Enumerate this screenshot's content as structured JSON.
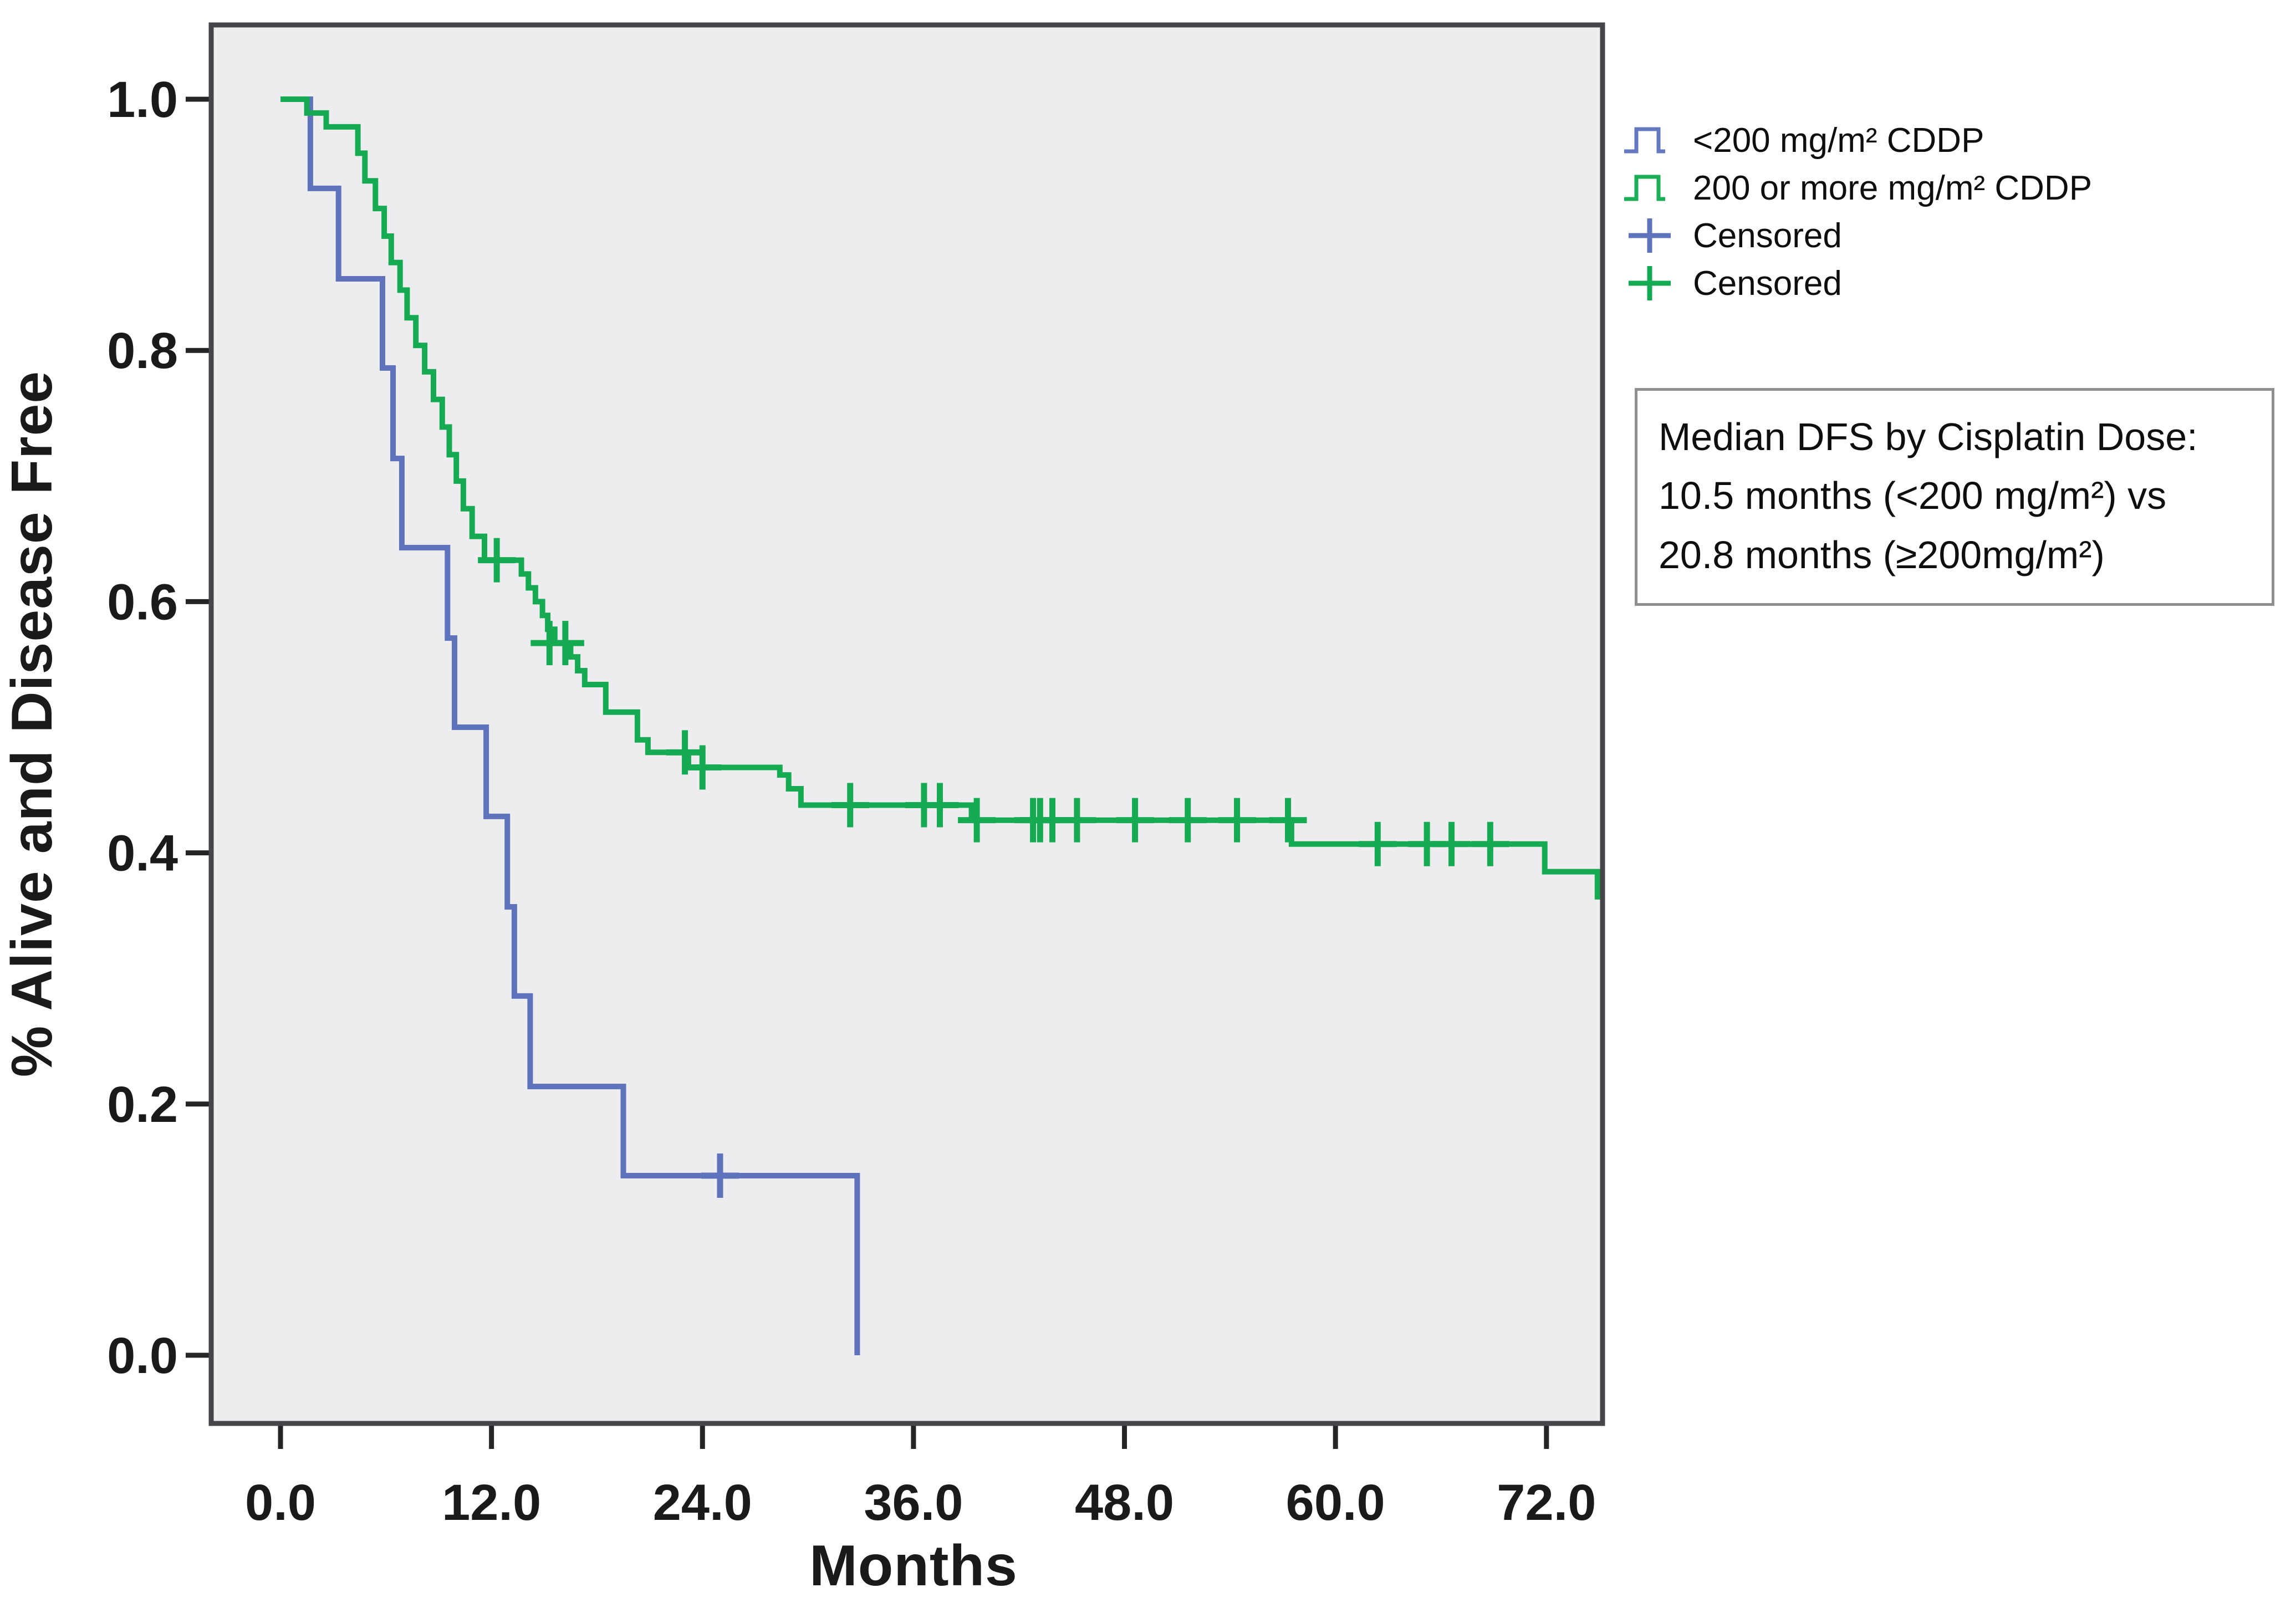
{
  "legend": {
    "items": [
      {
        "label": "<200 mg/m² CDDP",
        "marker": "step",
        "color": "#6479c1"
      },
      {
        "label": "200 or more mg/m² CDDP",
        "marker": "step",
        "color": "#1aaf56"
      },
      {
        "label": "Censored",
        "marker": "plus",
        "color": "#5e73bb"
      },
      {
        "label": "Censored",
        "marker": "plus",
        "color": "#16ab53"
      }
    ]
  },
  "annotation": {
    "lines": [
      "Median DFS by Cisplatin Dose:",
      "10.5 months (<200 mg/m²) vs",
      "20.8 months (≥200mg/m²)"
    ]
  },
  "chart_data": {
    "type": "line",
    "subtype": "kaplan-meier-step-survival",
    "title": "",
    "xlabel": "Months",
    "ylabel": "% Alive and Disease Free",
    "xlim": [
      0,
      75.3
    ],
    "ylim": [
      0.0,
      1.0
    ],
    "grid": false,
    "legend_position": "top-right-outside",
    "plot_bg_color": "#ededef",
    "frame_color": "#46464a",
    "x_ticks": [
      {
        "label": "0.0",
        "value": 0
      },
      {
        "label": "12.0",
        "value": 12
      },
      {
        "label": "24.0",
        "value": 24
      },
      {
        "label": "36.0",
        "value": 36
      },
      {
        "label": "48.0",
        "value": 48
      },
      {
        "label": "60.0",
        "value": 60
      },
      {
        "label": "72.0",
        "value": 72
      }
    ],
    "y_ticks": [
      {
        "label": "0.0",
        "value": 0.0
      },
      {
        "label": "0.2",
        "value": 0.2
      },
      {
        "label": "0.4",
        "value": 0.4
      },
      {
        "label": "0.6",
        "value": 0.6
      },
      {
        "label": "0.8",
        "value": 0.8
      },
      {
        "label": "1.0",
        "value": 1.0
      }
    ],
    "series": [
      {
        "name": "<200 mg/m² CDDP",
        "color": "#5e73bb",
        "median_months": 10.5,
        "points": [
          [
            0,
            1.0
          ],
          [
            1.7,
            0.929
          ],
          [
            3.3,
            0.857
          ],
          [
            5.8,
            0.786
          ],
          [
            6.4,
            0.714
          ],
          [
            6.9,
            0.643
          ],
          [
            9.5,
            0.571
          ],
          [
            9.9,
            0.5
          ],
          [
            11.7,
            0.429
          ],
          [
            12.9,
            0.357
          ],
          [
            13.3,
            0.286
          ],
          [
            14.2,
            0.214
          ],
          [
            19.5,
            0.143
          ],
          [
            32.8,
            0.0
          ]
        ],
        "end_t": 32.8,
        "censors": [
          [
            25.0,
            0.143
          ]
        ]
      },
      {
        "name": "200 or more mg/m² CDDP",
        "color": "#16ab53",
        "median_months": 20.8,
        "points": [
          [
            0,
            1.0
          ],
          [
            1.5,
            0.989
          ],
          [
            2.6,
            0.978
          ],
          [
            4.4,
            0.957
          ],
          [
            4.8,
            0.935
          ],
          [
            5.4,
            0.913
          ],
          [
            5.9,
            0.891
          ],
          [
            6.3,
            0.87
          ],
          [
            6.8,
            0.848
          ],
          [
            7.2,
            0.826
          ],
          [
            7.7,
            0.804
          ],
          [
            8.2,
            0.783
          ],
          [
            8.7,
            0.761
          ],
          [
            9.2,
            0.739
          ],
          [
            9.6,
            0.717
          ],
          [
            10.0,
            0.696
          ],
          [
            10.4,
            0.674
          ],
          [
            10.9,
            0.652
          ],
          [
            11.6,
            0.633
          ],
          [
            13.7,
            0.622
          ],
          [
            14.1,
            0.611
          ],
          [
            14.5,
            0.6
          ],
          [
            14.9,
            0.589
          ],
          [
            15.2,
            0.578
          ],
          [
            15.6,
            0.567
          ],
          [
            16.5,
            0.556
          ],
          [
            16.9,
            0.545
          ],
          [
            17.3,
            0.534
          ],
          [
            18.5,
            0.512
          ],
          [
            20.3,
            0.49
          ],
          [
            20.9,
            0.48
          ],
          [
            23.2,
            0.468
          ],
          [
            28.4,
            0.462
          ],
          [
            28.9,
            0.451
          ],
          [
            29.6,
            0.438
          ],
          [
            39.3,
            0.426
          ],
          [
            57.5,
            0.407
          ],
          [
            71.9,
            0.385
          ],
          [
            74.9,
            0.365
          ]
        ],
        "end_t": 75.3,
        "censors": [
          [
            12.3,
            0.633
          ],
          [
            15.3,
            0.567
          ],
          [
            16.2,
            0.567
          ],
          [
            23.0,
            0.48
          ],
          [
            24.0,
            0.468
          ],
          [
            32.4,
            0.438
          ],
          [
            36.6,
            0.438
          ],
          [
            37.5,
            0.438
          ],
          [
            39.6,
            0.426
          ],
          [
            42.8,
            0.426
          ],
          [
            43.2,
            0.426
          ],
          [
            43.9,
            0.426
          ],
          [
            45.3,
            0.426
          ],
          [
            48.6,
            0.426
          ],
          [
            51.6,
            0.426
          ],
          [
            54.4,
            0.426
          ],
          [
            57.3,
            0.426
          ],
          [
            62.4,
            0.407
          ],
          [
            65.2,
            0.407
          ],
          [
            66.6,
            0.407
          ],
          [
            68.8,
            0.407
          ]
        ]
      }
    ]
  }
}
